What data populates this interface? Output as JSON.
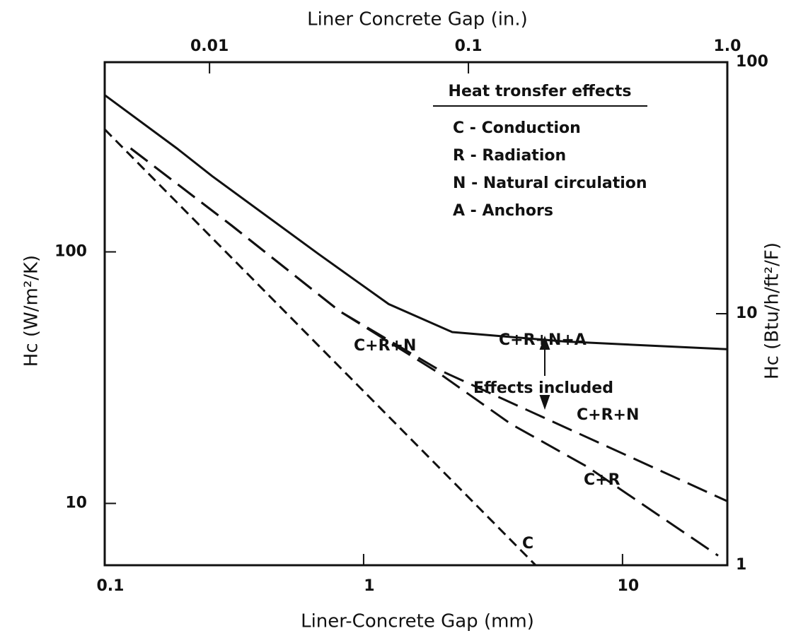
{
  "chart_data": {
    "type": "line",
    "x_label": "Liner-Concrete Gap (mm)",
    "x2_label": "Liner Concrete Gap (in.)",
    "y_label": "Hc (W/m²/K)",
    "y2_label": "Hc (Btu/h/ft²/F)",
    "xscale": "log",
    "yscale": "log",
    "xlim": [
      0.1,
      25.4
    ],
    "x2lim": [
      0.003937,
      1
    ],
    "ylim": [
      5.678,
      567.8
    ],
    "y2lim": [
      1,
      100
    ],
    "xticks": [
      0.1,
      1,
      10
    ],
    "x2ticks": [
      0.01,
      0.1,
      {
        "value": 1,
        "label": "1.0"
      }
    ],
    "yticks": [
      10,
      100
    ],
    "y2ticks": [
      1,
      10,
      100
    ],
    "series": [
      {
        "name": "C+R+N+A",
        "color": "#111",
        "dash": "solid",
        "x": [
          0.1,
          0.19,
          0.26,
          0.67,
          1.25,
          2.2,
          6,
          25.4
        ],
        "values": [
          420,
          258,
          200,
          98,
          62,
          48,
          44,
          41
        ]
      },
      {
        "name": "C+R+N",
        "color": "#111",
        "dash": "long",
        "x": [
          0.126,
          0.31,
          0.81,
          1.95,
          25.4
        ],
        "values": [
          258,
          127,
          58,
          34,
          10.2
        ]
      },
      {
        "name": "C+R",
        "color": "#111",
        "dash": "long",
        "x": [
          0.126,
          0.31,
          0.81,
          1.95,
          3.7,
          7.3,
          23.4
        ],
        "values": [
          258,
          127,
          58,
          33,
          20.7,
          14,
          6.2
        ]
      },
      {
        "name": "C",
        "color": "#111",
        "dash": "short",
        "x": [
          0.1,
          4.6
        ],
        "values": [
          307,
          5.7
        ]
      }
    ],
    "annotations": [
      "C+R+N",
      "Effects included"
    ],
    "legend": {
      "title": "Heat tronsfer effects",
      "items": [
        "C - Conduction",
        "R - Radiation",
        "N - Natural circulation",
        "A - Anchors"
      ]
    }
  }
}
